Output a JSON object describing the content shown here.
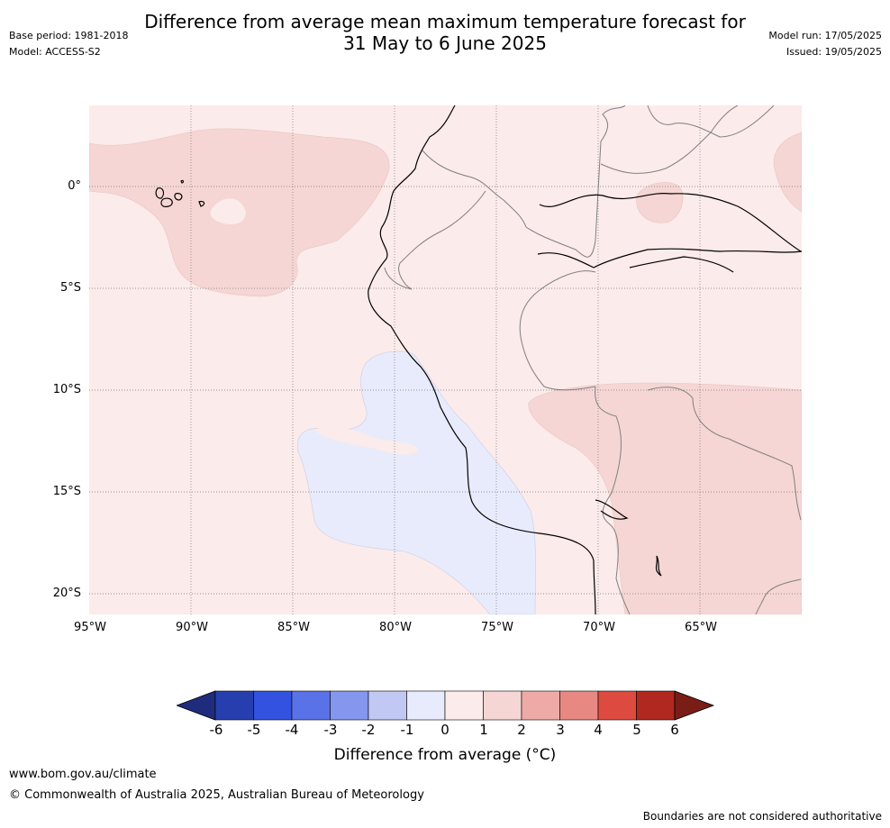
{
  "title_line1": "Difference from average mean maximum temperature forecast for",
  "title_line2": "31 May to 6 June 2025",
  "base_period": "Base period: 1981-2018",
  "model": "Model: ACCESS-S2",
  "model_run": "Model run: 17/05/2025",
  "issued": "Issued: 19/05/2025",
  "lat_labels": [
    "0°",
    "5°S",
    "10°S",
    "15°S",
    "20°S"
  ],
  "lon_labels": [
    "95°W",
    "90°W",
    "85°W",
    "80°W",
    "75°W",
    "70°W",
    "65°W"
  ],
  "colorbar": {
    "ticks": [
      "-6",
      "-5",
      "-4",
      "-3",
      "-2",
      "-1",
      "0",
      "1",
      "2",
      "3",
      "4",
      "5",
      "6"
    ],
    "label": "Difference from average (°C)",
    "colors": [
      "#1f2c7d",
      "#273fae",
      "#3352e0",
      "#5a72e8",
      "#8496ed",
      "#c1c8f4",
      "#e8ebfb",
      "#fbebea",
      "#f5d6d5",
      "#eeaaa7",
      "#e88883",
      "#dd4b40",
      "#b0281f",
      "#7a1d17"
    ]
  },
  "footer": {
    "url": "www.bom.gov.au/climate",
    "copyright": "© Commonwealth of Australia 2025, Australian Bureau of Meteorology",
    "disclaimer": "Boundaries are not considered authoritative"
  }
}
